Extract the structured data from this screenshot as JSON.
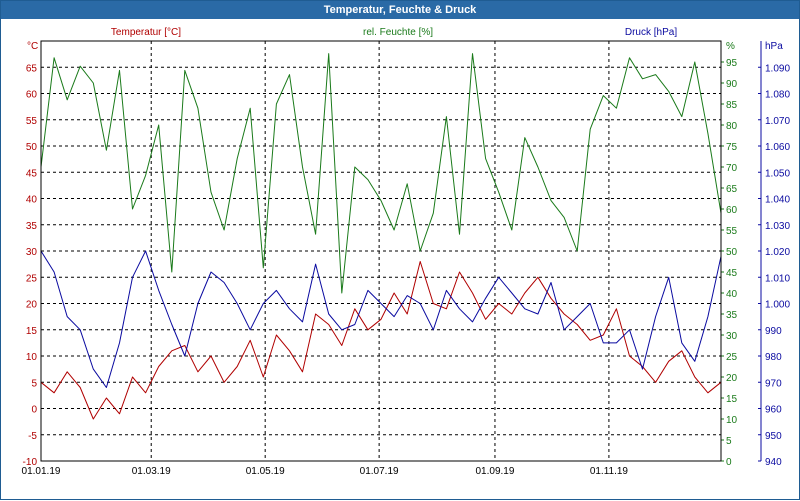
{
  "window": {
    "title": "Temperatur, Feuchte & Druck"
  },
  "colors": {
    "temperature": "#b00000",
    "humidity": "#1a7a1a",
    "pressure": "#0a0aa0",
    "grid": "#000000",
    "axis_text": "#000000",
    "title_bar": "#2a6aa6"
  },
  "chart_data": {
    "type": "line",
    "title": "Temperatur, Feuchte & Druck",
    "grid": true,
    "x_range": [
      "01.01.19",
      "31.12.19"
    ],
    "x_ticks": [
      "01.01.19",
      "01.03.19",
      "01.05.19",
      "01.07.19",
      "01.09.19",
      "01.11.19"
    ],
    "axes": {
      "left": {
        "label": "Temperatur [°C]",
        "unit": "°C",
        "ylim": [
          -10,
          70
        ],
        "ticks": [
          -10,
          -5,
          0,
          5,
          10,
          15,
          20,
          25,
          30,
          35,
          40,
          45,
          50,
          55,
          60,
          65
        ]
      },
      "right1": {
        "label": "rel. Feuchte [%]",
        "unit": "%",
        "ylim": [
          0,
          100
        ],
        "ticks": [
          0,
          5,
          10,
          15,
          20,
          25,
          30,
          35,
          40,
          45,
          50,
          55,
          60,
          65,
          70,
          75,
          80,
          85,
          90,
          95
        ]
      },
      "right2": {
        "label": "Druck [hPa]",
        "unit": "hPa",
        "ylim": [
          940,
          1100
        ],
        "ticks": [
          "940",
          "950",
          "960",
          "970",
          "980",
          "990",
          "1.000",
          "1.010",
          "1.020",
          "1.030",
          "1.040",
          "1.050",
          "1.060",
          "1.070",
          "1.080",
          "1.090"
        ]
      }
    },
    "x_day_index": [
      0,
      7,
      14,
      21,
      28,
      35,
      42,
      49,
      56,
      63,
      70,
      77,
      84,
      91,
      98,
      105,
      112,
      119,
      126,
      133,
      140,
      147,
      154,
      161,
      168,
      175,
      182,
      189,
      196,
      203,
      210,
      217,
      224,
      231,
      238,
      245,
      252,
      259,
      266,
      273,
      280,
      287,
      294,
      301,
      308,
      315,
      322,
      329,
      336,
      343,
      350,
      357,
      364
    ],
    "series": [
      {
        "name": "Temperatur [°C]",
        "axis": "left",
        "values": [
          5,
          3,
          7,
          4,
          -2,
          2,
          -1,
          6,
          3,
          8,
          11,
          12,
          7,
          10,
          5,
          8,
          13,
          6,
          14,
          11,
          7,
          18,
          16,
          12,
          19,
          15,
          17,
          22,
          18,
          28,
          20,
          19,
          26,
          22,
          17,
          20,
          18,
          22,
          25,
          21,
          18,
          16,
          13,
          14,
          19,
          10,
          8,
          5,
          9,
          11,
          6,
          3,
          5
        ]
      },
      {
        "name": "rel. Feuchte [%]",
        "axis": "right1",
        "values": [
          70,
          96,
          86,
          94,
          90,
          74,
          93,
          60,
          68,
          80,
          45,
          93,
          84,
          64,
          55,
          72,
          84,
          46,
          85,
          92,
          70,
          54,
          97,
          40,
          70,
          67,
          62,
          55,
          66,
          50,
          59,
          82,
          54,
          97,
          72,
          64,
          55,
          77,
          70,
          62,
          58,
          50,
          79,
          87,
          84,
          96,
          91,
          92,
          88,
          82,
          95,
          78,
          59
        ]
      },
      {
        "name": "Druck [hPa]",
        "axis": "right2",
        "values": [
          1020,
          1012,
          995,
          990,
          975,
          968,
          985,
          1010,
          1020,
          1005,
          992,
          980,
          1000,
          1012,
          1008,
          1000,
          990,
          1000,
          1005,
          998,
          993,
          1015,
          996,
          990,
          992,
          1005,
          1000,
          995,
          1003,
          1000,
          990,
          1005,
          998,
          993,
          1002,
          1010,
          1004,
          998,
          996,
          1008,
          990,
          995,
          1000,
          985,
          985,
          990,
          975,
          995,
          1010,
          985,
          978,
          995,
          1018
        ]
      }
    ]
  }
}
